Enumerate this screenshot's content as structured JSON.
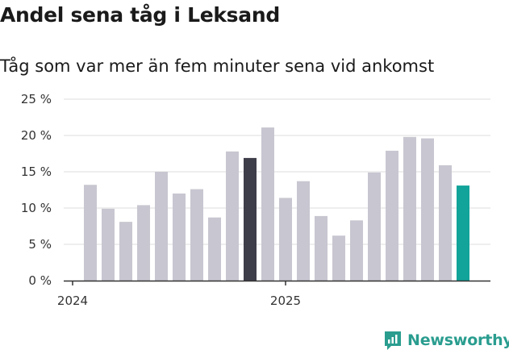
{
  "header": {
    "title": "Andel sena tåg i Leksand",
    "subtitle": "Tåg som var mer än fem minuter sena vid ankomst"
  },
  "brand": {
    "name": "Newsworthy",
    "color": "#2a9d8f"
  },
  "colors": {
    "bar_default": "#c8c6d0",
    "bar_highlight_dark": "#3e3d4a",
    "bar_highlight_latest": "#12a39a",
    "grid": "#dddddd",
    "axis": "#333333"
  },
  "chart_data": {
    "type": "bar",
    "title": "Andel sena tåg i Leksand",
    "subtitle": "Tåg som var mer än fem minuter sena vid ankomst",
    "xlabel": "",
    "ylabel": "",
    "ylim": [
      0,
      25
    ],
    "y_ticks": [
      0,
      5,
      10,
      15,
      20,
      25
    ],
    "y_tick_labels": [
      "0 %",
      "5 %",
      "10 %",
      "15 %",
      "20 %",
      "25 %"
    ],
    "x_tick_labels": [
      {
        "label": "2024",
        "index": 0
      },
      {
        "label": "2025",
        "index": 12
      }
    ],
    "grid": true,
    "categories": [
      "2024-01",
      "2024-02",
      "2024-03",
      "2024-04",
      "2024-05",
      "2024-06",
      "2024-07",
      "2024-08",
      "2024-09",
      "2024-10",
      "2024-11",
      "2024-12",
      "2025-01",
      "2025-02",
      "2025-03",
      "2025-04",
      "2025-05",
      "2025-06",
      "2025-07",
      "2025-08",
      "2025-09",
      "2025-10",
      "2025-11",
      "2025-12"
    ],
    "values": [
      null,
      13.2,
      9.9,
      8.1,
      10.4,
      15.0,
      12.0,
      12.6,
      8.7,
      17.8,
      16.9,
      21.1,
      11.4,
      13.7,
      8.9,
      6.2,
      8.3,
      14.9,
      17.9,
      19.8,
      19.6,
      15.9,
      13.1,
      null
    ],
    "highlight": {
      "dark_index": 10,
      "latest_index": 22
    }
  }
}
